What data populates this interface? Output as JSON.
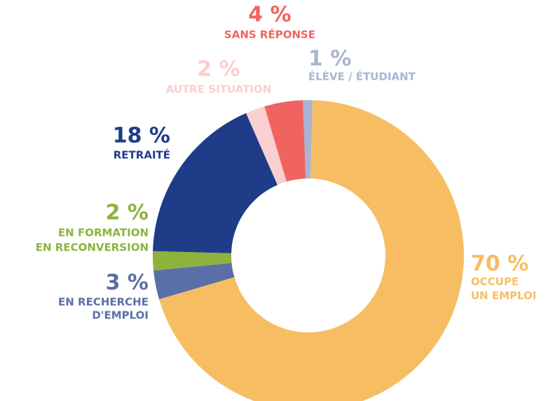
{
  "chart_data": {
    "type": "donut",
    "categories": [
      [
        "ÉLÈVE / ÉTUDIANT"
      ],
      [
        "OCCUPE",
        "UN EMPLOI"
      ],
      [
        "EN RECHERCHE",
        "D'EMPLOI"
      ],
      [
        "EN FORMATION",
        "EN RECONVERSION"
      ],
      [
        "RETRAITÉ"
      ],
      [
        "AUTRE SITUATION"
      ],
      [
        "SANS RÉPONSE"
      ]
    ],
    "values": [
      1,
      70,
      3,
      2,
      18,
      2,
      4
    ],
    "value_labels": [
      "1 %",
      "70 %",
      "3 %",
      "2 %",
      "18 %",
      "2 %",
      "4 %"
    ],
    "colors": [
      "#aab4d4",
      "#f7bd63",
      "#5a6fa8",
      "#8db33c",
      "#1f3c88",
      "#f9cfd0",
      "#ef6461"
    ]
  }
}
